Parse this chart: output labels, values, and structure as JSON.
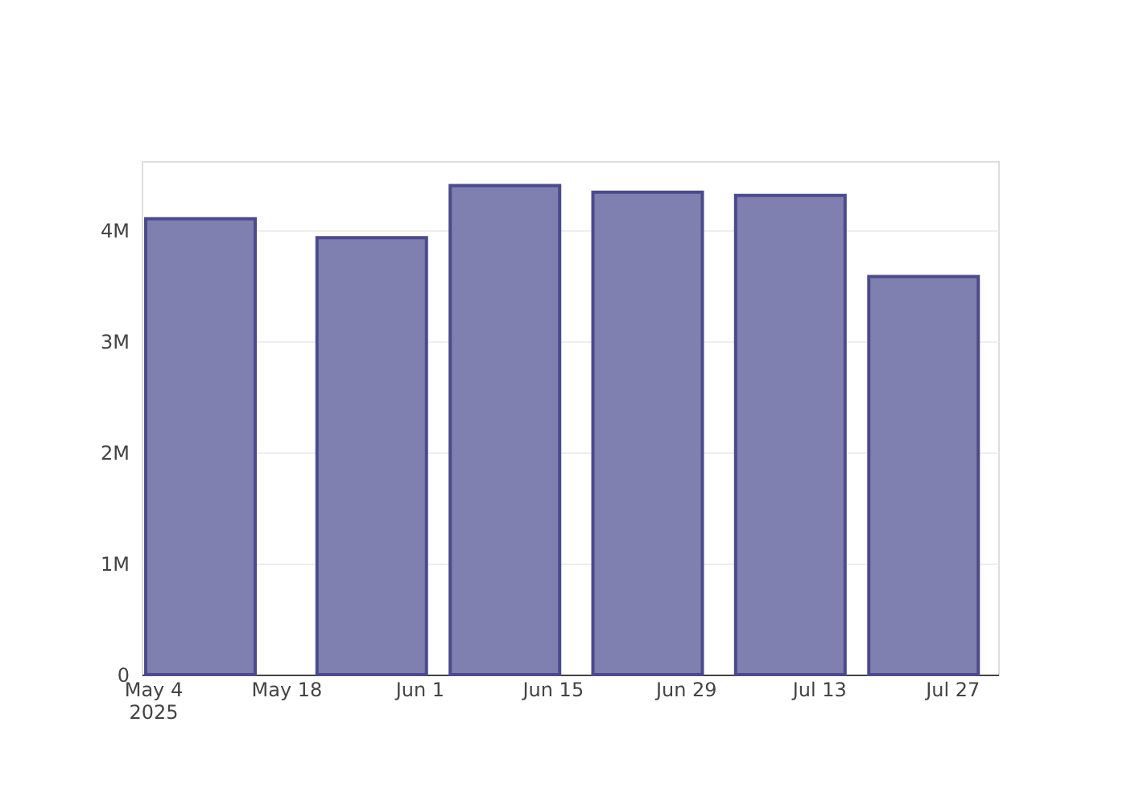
{
  "chart_data": {
    "type": "bar",
    "x": [
      "2025-05-09",
      "2025-05-27",
      "2025-06-10",
      "2025-06-25",
      "2025-07-10",
      "2025-07-24"
    ],
    "values": [
      4100000,
      3930000,
      4400000,
      4340000,
      4310000,
      3580000
    ],
    "color": "#7f7fb0",
    "xlim": [
      "2025-05-03T16:00",
      "2025-07-31"
    ],
    "xticks": [
      {
        "value": "2025-05-04",
        "label": "May 4\n2025"
      },
      {
        "value": "2025-05-18",
        "label": "May 18"
      },
      {
        "value": "2025-06-01",
        "label": "Jun 1"
      },
      {
        "value": "2025-06-15",
        "label": "Jun 15"
      },
      {
        "value": "2025-06-29",
        "label": "Jun 29"
      },
      {
        "value": "2025-07-13",
        "label": "Jul 13"
      },
      {
        "value": "2025-07-27",
        "label": "Jul 27"
      }
    ],
    "ylim": [
      0,
      4620000
    ],
    "yticks": [
      {
        "value": 0,
        "label": "0"
      },
      {
        "value": 1000000,
        "label": "1M"
      },
      {
        "value": 2000000,
        "label": "2M"
      },
      {
        "value": 3000000,
        "label": "3M"
      },
      {
        "value": 4000000,
        "label": "4M"
      }
    ],
    "grid": "y"
  }
}
